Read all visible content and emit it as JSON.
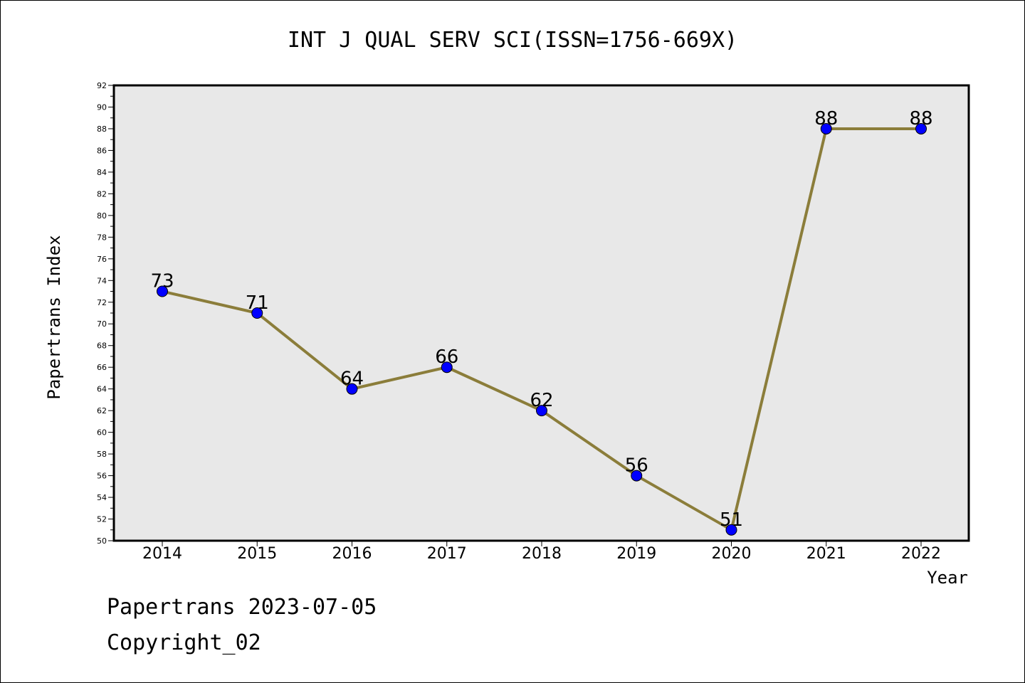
{
  "chart_data": {
    "type": "line",
    "title": "INT J QUAL SERV SCI(ISSN=1756-669X)",
    "xlabel": "Year",
    "ylabel": "Papertrans Index",
    "x": [
      "2014",
      "2015",
      "2016",
      "2017",
      "2018",
      "2019",
      "2020",
      "2021",
      "2022"
    ],
    "series": [
      {
        "values": [
          73,
          71,
          64,
          66,
          62,
          56,
          51,
          88,
          88
        ]
      }
    ],
    "ylim": [
      50,
      92
    ],
    "ytick_step": 2,
    "grid": false,
    "line_color": "#8b7d3a",
    "marker_color": "#0000ff",
    "plot_background": "#e8e8e8"
  },
  "footer": {
    "line1": "Papertrans 2023-07-05",
    "line2": "Copyright_02"
  }
}
